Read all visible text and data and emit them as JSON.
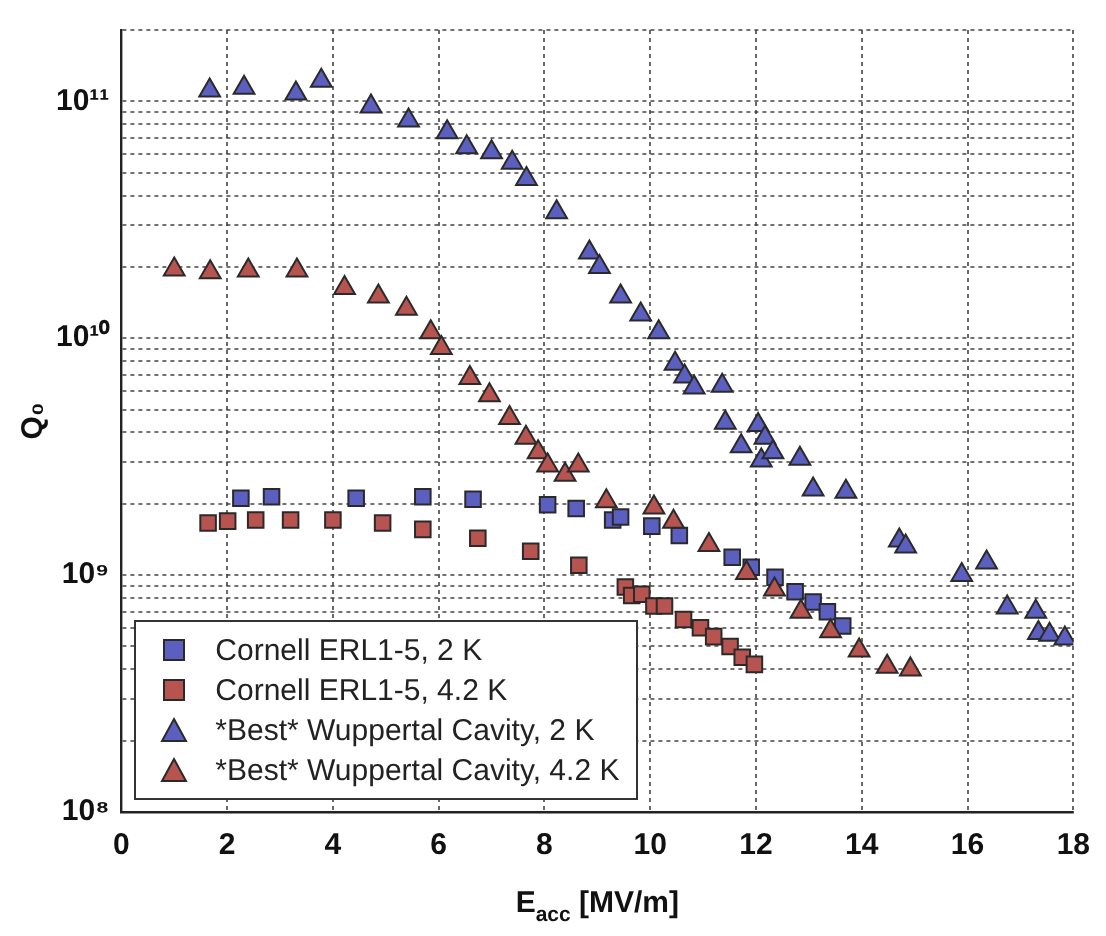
{
  "chart_data": {
    "type": "scatter",
    "xlabel": "E$_{acc}$ [MV/m]",
    "ylabel": "Q₀",
    "log": "y",
    "grid": true,
    "legend": "bottom left",
    "xlim": [
      0,
      18
    ],
    "xticks": [
      0,
      2,
      4,
      6,
      8,
      10,
      12,
      14,
      16,
      18
    ],
    "ylim": [
      100000000,
      200000000000
    ],
    "yticks": [
      {
        "value": 100000000,
        "label": "10⁸"
      },
      {
        "value": 200000000,
        "label": null
      },
      {
        "value": 300000000,
        "label": null
      },
      {
        "value": 400000000,
        "label": null
      },
      {
        "value": 500000000,
        "label": null
      },
      {
        "value": 600000000,
        "label": null
      },
      {
        "value": 700000000,
        "label": null
      },
      {
        "value": 800000000,
        "label": null
      },
      {
        "value": 900000000,
        "label": null
      },
      {
        "value": 1000000000,
        "label": "10⁹"
      },
      {
        "value": 2000000000,
        "label": null
      },
      {
        "value": 3000000000,
        "label": null
      },
      {
        "value": 4000000000,
        "label": null
      },
      {
        "value": 5000000000,
        "label": null
      },
      {
        "value": 6000000000,
        "label": null
      },
      {
        "value": 7000000000,
        "label": null
      },
      {
        "value": 8000000000,
        "label": null
      },
      {
        "value": 9000000000,
        "label": null
      },
      {
        "value": 10000000000,
        "label": "10¹⁰"
      },
      {
        "value": 20000000000,
        "label": null
      },
      {
        "value": 30000000000,
        "label": null
      },
      {
        "value": 40000000000,
        "label": null
      },
      {
        "value": 50000000000,
        "label": null
      },
      {
        "value": 60000000000,
        "label": null
      },
      {
        "value": 70000000000,
        "label": null
      },
      {
        "value": 80000000000,
        "label": null
      },
      {
        "value": 90000000000,
        "label": null
      },
      {
        "value": 100000000000,
        "label": "10¹¹"
      },
      {
        "value": 200000000000,
        "label": null
      }
    ],
    "series": [
      {
        "name": "Cornell ERL1-5, 2 K",
        "color": "#5b5fc0",
        "marker": "square",
        "x": [
          2.26,
          2.84,
          4.44,
          5.7,
          6.65,
          8.06,
          8.6,
          9.29,
          9.44,
          10.03,
          10.55,
          11.55,
          11.91,
          12.36,
          12.74,
          13.08,
          13.35,
          13.64
        ],
        "values": [
          2110000000.0,
          2140000000.0,
          2110000000.0,
          2140000000.0,
          2090000000.0,
          1980000000.0,
          1910000000.0,
          1710000000.0,
          1760000000.0,
          1610000000.0,
          1470000000.0,
          1190000000.0,
          1080000000.0,
          980000000.0,
          850000000.0,
          770000000.0,
          700000000.0,
          610000000.0
        ]
      },
      {
        "name": "Cornell ERL1-5, 4.2 K",
        "color": "#b85450",
        "marker": "square",
        "x": [
          1.64,
          2.01,
          2.54,
          3.2,
          4.0,
          4.94,
          5.7,
          6.74,
          7.74,
          8.65,
          9.53,
          9.65,
          9.84,
          10.07,
          10.27,
          10.63,
          10.95,
          11.2,
          11.51,
          11.74,
          11.97
        ],
        "values": [
          1660000000.0,
          1690000000.0,
          1710000000.0,
          1710000000.0,
          1710000000.0,
          1660000000.0,
          1560000000.0,
          1430000000.0,
          1260000000.0,
          1100000000.0,
          890000000.0,
          820000000.0,
          830000000.0,
          740000000.0,
          740000000.0,
          650000000.0,
          600000000.0,
          550000000.0,
          500000000.0,
          450000000.0,
          420000000.0
        ]
      },
      {
        "name": "*Best* Wuppertal Cavity, 2 K",
        "color": "#5b5fc0",
        "marker": "triangle",
        "x": [
          1.67,
          2.32,
          3.3,
          3.78,
          4.72,
          5.43,
          6.16,
          6.53,
          7.0,
          7.39,
          7.66,
          8.23,
          8.85,
          9.04,
          9.44,
          9.82,
          10.16,
          10.47,
          10.65,
          10.83,
          11.36,
          11.42,
          11.72,
          12.04,
          12.1,
          12.17,
          12.32,
          12.83,
          13.08,
          13.7,
          14.71,
          14.83,
          15.89,
          16.36,
          16.75,
          17.29,
          17.34,
          17.55,
          17.84
        ],
        "values": [
          111000000000.0,
          114000000000.0,
          108000000000.0,
          122000000000.0,
          95000000000.0,
          83000000000.0,
          74000000000.0,
          64000000000.0,
          61000000000.0,
          55000000000.0,
          47000000000.0,
          34000000000.0,
          23000000000.0,
          20000000000.0,
          15000000000.0,
          12600000000.0,
          10600000000.0,
          7800000000.0,
          6900000000.0,
          6200000000.0,
          6300000000.0,
          4400000000.0,
          3500000000.0,
          4300000000.0,
          3050000000.0,
          3800000000.0,
          3300000000.0,
          3100000000.0,
          2300000000.0,
          2250000000.0,
          1400000000.0,
          1320000000.0,
          1000000000.0,
          1130000000.0,
          730000000.0,
          700000000.0,
          570000000.0,
          560000000.0,
          540000000.0
        ]
      },
      {
        "name": "*Best* Wuppertal Cavity, 4.2 K",
        "color": "#b85450",
        "marker": "triangle",
        "x": [
          1.0,
          1.68,
          2.4,
          3.32,
          4.22,
          4.86,
          5.39,
          5.85,
          6.05,
          6.59,
          6.96,
          7.34,
          7.65,
          7.88,
          8.06,
          8.39,
          8.64,
          9.17,
          10.07,
          10.44,
          11.11,
          11.82,
          12.35,
          12.85,
          13.41,
          13.95,
          14.48,
          14.92
        ],
        "values": [
          19500000000.0,
          19000000000.0,
          19300000000.0,
          19300000000.0,
          16300000000.0,
          15000000000.0,
          13300000000.0,
          10600000000.0,
          9100000000.0,
          6800000000.0,
          5750000000.0,
          4600000000.0,
          3800000000.0,
          3300000000.0,
          2900000000.0,
          2650000000.0,
          2900000000.0,
          2050000000.0,
          1930000000.0,
          1680000000.0,
          1340000000.0,
          1020000000.0,
          870000000.0,
          700000000.0,
          580000000.0,
          480000000.0,
          410000000.0,
          400000000.0
        ]
      }
    ]
  }
}
